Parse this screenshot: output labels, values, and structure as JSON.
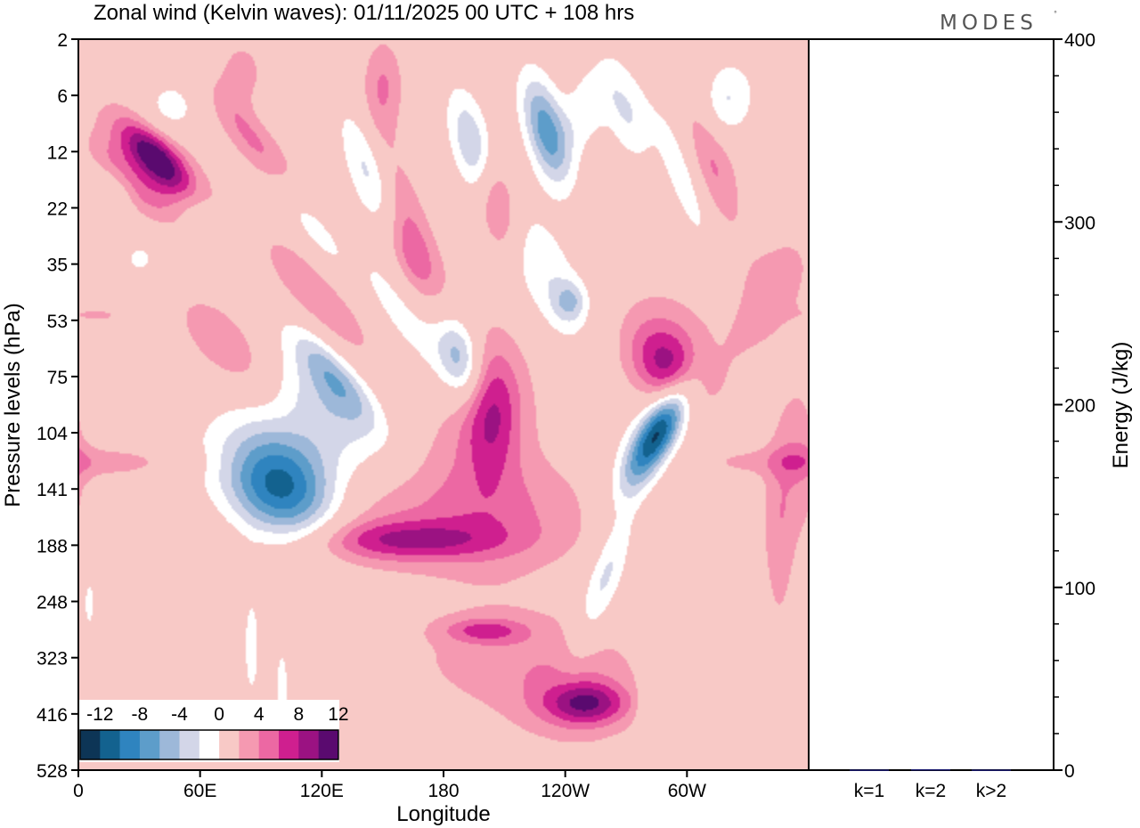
{
  "brand": "MODES",
  "brand_mark": "°",
  "chart_data": [
    {
      "type": "heatmap",
      "title": "Zonal wind (Kelvin waves):  01/11/2025  00 UTC  + 108 hrs",
      "xlabel": "Longitude",
      "ylabel": "Pressure levels (hPa)",
      "x_ticks": [
        "0",
        "60E",
        "120E",
        "180",
        "120W",
        "60W"
      ],
      "y_ticks": [
        "2",
        "6",
        "12",
        "22",
        "35",
        "53",
        "75",
        "104",
        "141",
        "188",
        "248",
        "323",
        "416",
        "528"
      ],
      "colorbar": {
        "levels": [
          -14,
          -12,
          -10,
          -8,
          -6,
          -4,
          -2,
          2,
          4,
          6,
          8,
          10,
          12,
          14
        ],
        "labels": [
          "-12",
          "-8",
          "-4",
          "0",
          "4",
          "8",
          "12"
        ],
        "colors": [
          "#0d3556",
          "#13628f",
          "#2f84bf",
          "#5d9dca",
          "#9db8d9",
          "#d3d6e8",
          "#ffffff",
          "#f8c9c6",
          "#f599b1",
          "#ec68a3",
          "#cf1f8f",
          "#9b1282",
          "#5a0a6f"
        ]
      },
      "anomalies": [
        {
          "lon": 18,
          "lev": 2.6,
          "val": -3,
          "a": 0.35,
          "b": 0.6,
          "rot": 0
        },
        {
          "lon": 45,
          "lev": 1.2,
          "val": -3,
          "a": 0.35,
          "b": 0.7,
          "rot": 0
        },
        {
          "lon": 150,
          "lev": 0.8,
          "val": 4,
          "a": 0.25,
          "b": 1.2,
          "rot": 0
        },
        {
          "lon": 80,
          "lev": 0.6,
          "val": 3,
          "a": 0.3,
          "b": 0.9,
          "rot": 0
        },
        {
          "lon": 250,
          "lev": 1.2,
          "val": -3.2,
          "a": 0.3,
          "b": 1.3,
          "rot": -20
        },
        {
          "lon": 318,
          "lev": 1.1,
          "val": -4.5,
          "a": 0.35,
          "b": 1.0,
          "rot": -15
        },
        {
          "lon": 12,
          "lev": 4.9,
          "val": 2,
          "a": 0.4,
          "b": 0.3,
          "rot": 0
        },
        {
          "lon": 25,
          "lev": 2.5,
          "val": 5,
          "a": 0.25,
          "b": 1.3,
          "rot": 45
        },
        {
          "lon": 38,
          "lev": 2.1,
          "val": 8,
          "a": 0.22,
          "b": 1.1,
          "rot": 45
        },
        {
          "lon": 42,
          "lev": 2.3,
          "val": 5,
          "a": 0.35,
          "b": 2.0,
          "rot": 45
        },
        {
          "lon": 92,
          "lev": 2.0,
          "val": 6,
          "a": 0.25,
          "b": 1.8,
          "rot": 40
        },
        {
          "lon": 60,
          "lev": 3.1,
          "val": -3,
          "a": 0.25,
          "b": 1.0,
          "rot": 30
        },
        {
          "lon": 110,
          "lev": 3.0,
          "val": -4,
          "a": 0.25,
          "b": 2.2,
          "rot": 30
        },
        {
          "lon": 145,
          "lev": 2.5,
          "val": -6,
          "a": 0.25,
          "b": 1.8,
          "rot": 20
        },
        {
          "lon": 195,
          "lev": 2.0,
          "val": -7,
          "a": 0.25,
          "b": 1.5,
          "rot": 15
        },
        {
          "lon": 230,
          "lev": 1.6,
          "val": -9,
          "a": 0.25,
          "b": 1.4,
          "rot": 15
        },
        {
          "lon": 270,
          "lev": 1.3,
          "val": -4,
          "a": 0.25,
          "b": 1.2,
          "rot": 15
        },
        {
          "lon": 160,
          "lev": 3.4,
          "val": 5,
          "a": 0.3,
          "b": 2.5,
          "rot": 15
        },
        {
          "lon": 205,
          "lev": 2.85,
          "val": 7,
          "a": 0.25,
          "b": 1.3,
          "rot": 12
        },
        {
          "lon": 310,
          "lev": 2.1,
          "val": 5,
          "a": 0.3,
          "b": 2.0,
          "rot": 15
        },
        {
          "lon": 300,
          "lev": 2.5,
          "val": -4,
          "a": 0.25,
          "b": 2.2,
          "rot": 20
        },
        {
          "lon": 30,
          "lev": 3.9,
          "val": -2.5,
          "a": 0.3,
          "b": 0.6,
          "rot": 0
        },
        {
          "lon": 75,
          "lev": 5.5,
          "val": 4,
          "a": 0.4,
          "b": 1.8,
          "rot": 45
        },
        {
          "lon": 122,
          "lev": 4.7,
          "val": 4,
          "a": 0.4,
          "b": 2.3,
          "rot": 40
        },
        {
          "lon": 165,
          "lev": 4.0,
          "val": 3,
          "a": 0.35,
          "b": 1.5,
          "rot": 30
        },
        {
          "lon": 230,
          "lev": 4.2,
          "val": -4,
          "a": 0.4,
          "b": 2.0,
          "rot": 25
        },
        {
          "lon": 170,
          "lev": 5.1,
          "val": -5,
          "a": 0.4,
          "b": 2.5,
          "rot": 35
        },
        {
          "lon": 188,
          "lev": 5.65,
          "val": -5.5,
          "a": 0.25,
          "b": 1.0,
          "rot": 10
        },
        {
          "lon": 242,
          "lev": 4.65,
          "val": -4.5,
          "a": 0.2,
          "b": 0.5,
          "rot": 0
        },
        {
          "lon": 125,
          "lev": 5.95,
          "val": -6,
          "a": 0.25,
          "b": 1.6,
          "rot": 40
        },
        {
          "lon": 100,
          "lev": 8.0,
          "val": -12,
          "a": 0.6,
          "b": 1.5,
          "rot": 50
        },
        {
          "lon": 100,
          "lev": 7.3,
          "val": -3,
          "a": 1.3,
          "b": 2.0,
          "rot": 45
        },
        {
          "lon": 120,
          "lev": 6.5,
          "val": -3,
          "a": 0.4,
          "b": 2.0,
          "rot": 45
        },
        {
          "lon": 203,
          "lev": 6.6,
          "val": 7,
          "a": 0.35,
          "b": 1.5,
          "rot": 0
        },
        {
          "lon": 200,
          "lev": 7.0,
          "val": 3,
          "a": 0.8,
          "b": 3.0,
          "rot": 0
        },
        {
          "lon": 175,
          "lev": 8.5,
          "val": 3.5,
          "a": 3.0,
          "b": 1.4,
          "rot": 0
        },
        {
          "lon": 160,
          "lev": 8.9,
          "val": 6,
          "a": 1.2,
          "b": 0.5,
          "rot": 0
        },
        {
          "lon": 215,
          "lev": 11.0,
          "val": 3,
          "a": 1.5,
          "b": 1.5,
          "rot": 0
        },
        {
          "lon": 200,
          "lev": 10.5,
          "val": 5,
          "a": 0.5,
          "b": 0.3,
          "rot": 0
        },
        {
          "lon": 250,
          "lev": 11.8,
          "val": 7,
          "a": 0.5,
          "b": 0.5,
          "rot": 0
        },
        {
          "lon": 245,
          "lev": 11.8,
          "val": 3,
          "a": 0.8,
          "b": 1.2,
          "rot": 0
        },
        {
          "lon": 285,
          "lev": 7.0,
          "val": -12,
          "a": 0.7,
          "b": 0.45,
          "rot": 60
        },
        {
          "lon": 285,
          "lev": 7.0,
          "val": -3,
          "a": 1.3,
          "b": 0.9,
          "rot": 60
        },
        {
          "lon": 260,
          "lev": 9.5,
          "val": -5,
          "a": 1.0,
          "b": 0.45,
          "rot": 70
        },
        {
          "lon": 280,
          "lev": 12.0,
          "val": -3,
          "a": 0.6,
          "b": 0.25,
          "rot": 90
        },
        {
          "lon": 290,
          "lev": 5.8,
          "val": 7,
          "a": 0.4,
          "b": 1.1,
          "rot": 30
        },
        {
          "lon": 295,
          "lev": 5.6,
          "val": 3,
          "a": 0.7,
          "b": 2.0,
          "rot": 30
        },
        {
          "lon": 340,
          "lev": 4.5,
          "val": 3,
          "a": 1.0,
          "b": 1.0,
          "rot": 60
        },
        {
          "lon": 345,
          "lev": 8.8,
          "val": 3,
          "a": 1.3,
          "b": 0.4,
          "rot": 90
        },
        {
          "lon": 355,
          "lev": 7.4,
          "val": 3,
          "a": 1.0,
          "b": 0.5,
          "rot": 90
        },
        {
          "lon": 3,
          "lev": 7.5,
          "val": 3,
          "a": 1.3,
          "b": 0.4,
          "rot": 0
        },
        {
          "lon": 5,
          "lev": 10.0,
          "val": -2.5,
          "a": 0.5,
          "b": 0.2,
          "rot": 90
        },
        {
          "lon": 85,
          "lev": 10.8,
          "val": -2.5,
          "a": 1.0,
          "b": 0.3,
          "rot": 90
        },
        {
          "lon": 100,
          "lev": 11.5,
          "val": -2.5,
          "a": 0.8,
          "b": 0.25,
          "rot": 90
        },
        {
          "lon": 50,
          "lev": 2.8,
          "val": 0,
          "a": 0.4,
          "b": 0.6,
          "rot": 0
        }
      ]
    },
    {
      "type": "bar",
      "title": "",
      "ylabel": "Energy (J/kg)",
      "categories": [
        "k=1",
        "k=2",
        "k>2"
      ],
      "values": [
        0.3,
        0.5,
        0.3
      ],
      "ylim": [
        0,
        400
      ],
      "y_ticks": [
        "0",
        "100",
        "200",
        "300",
        "400"
      ]
    }
  ]
}
